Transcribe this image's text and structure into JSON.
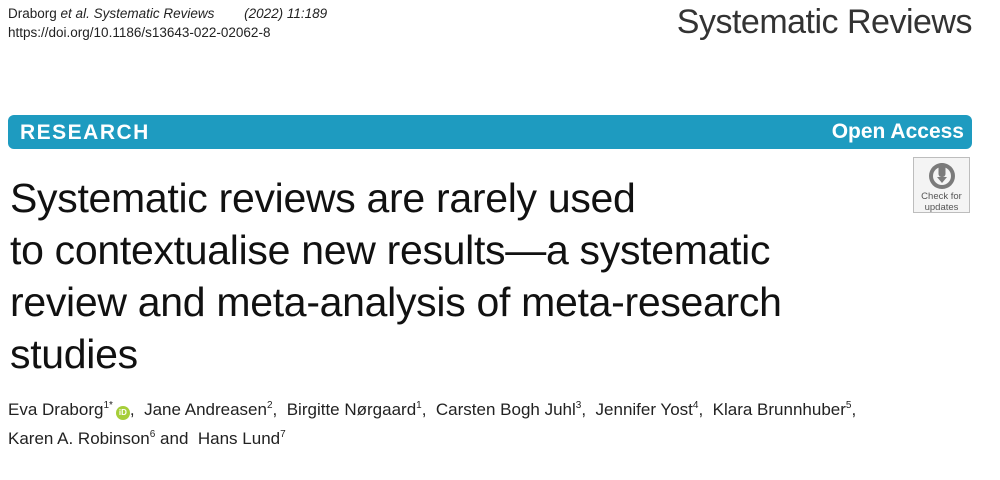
{
  "citation": {
    "authors_short": "Draborg",
    "journal_short": "et al. Systematic Reviews",
    "year_volume": "(2022) 11:189",
    "doi": "https://doi.org/10.1186/s13643-022-02062-8"
  },
  "journal_name": "Systematic Reviews",
  "banner": {
    "article_type": "RESEARCH",
    "access": "Open Access",
    "color": "#1e9bc0"
  },
  "check_updates": {
    "line1": "Check for",
    "line2": "updates"
  },
  "title_lines": [
    "Systematic reviews are rarely used",
    "to contextualise new results—a systematic",
    "review and meta-analysis of meta-research",
    "studies"
  ],
  "authors": [
    {
      "name": "Eva Draborg",
      "aff": "1*",
      "orcid": true,
      "sep": ", "
    },
    {
      "name": "Jane Andreasen",
      "aff": "2",
      "sep": ", "
    },
    {
      "name": "Birgitte Nørgaard",
      "aff": "1",
      "sep": ", "
    },
    {
      "name": "Carsten Bogh Juhl",
      "aff": "3",
      "sep": ", "
    },
    {
      "name": "Jennifer Yost",
      "aff": "4",
      "sep": ", "
    },
    {
      "name": "Klara Brunnhuber",
      "aff": "5",
      "sep": ","
    },
    {
      "name": "Karen A. Robinson",
      "aff": "6",
      "sep": " and "
    },
    {
      "name": "Hans Lund",
      "aff": "7",
      "sep": ""
    }
  ],
  "orcid_label": "iD",
  "orcid_color": "#a6ce39"
}
